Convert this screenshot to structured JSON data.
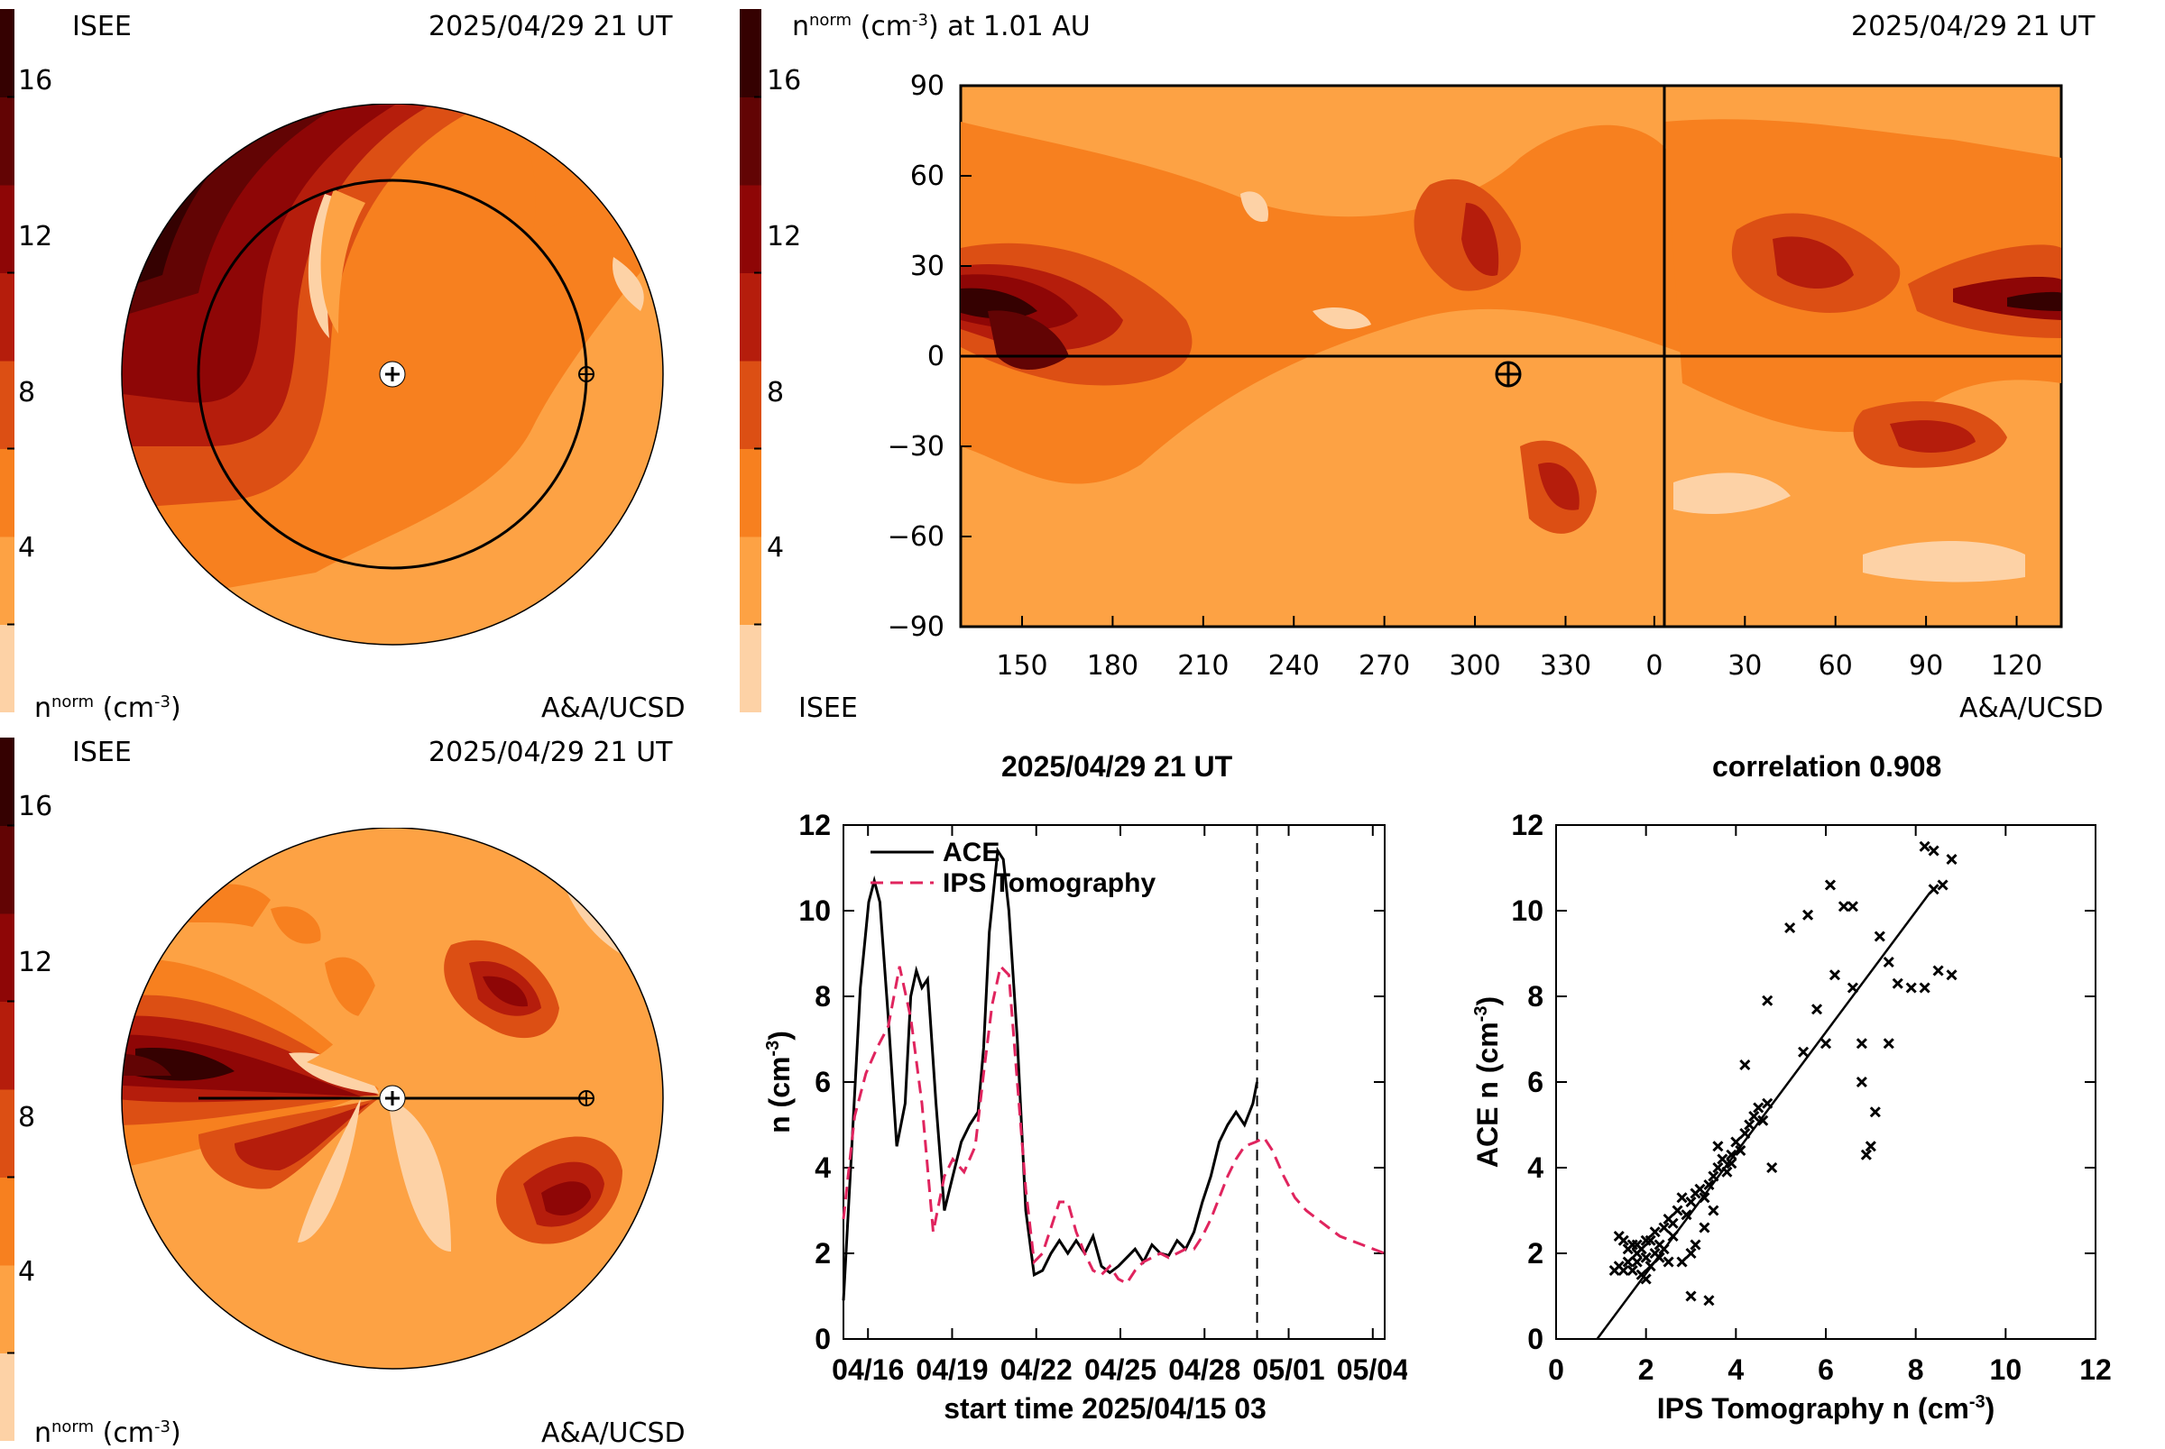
{
  "colors": {
    "levels": [
      "#fdd2a6",
      "#fda244",
      "#f7801f",
      "#dc4f14",
      "#b51d0c",
      "#8e0606",
      "#620404",
      "#350101"
    ],
    "ace_line": "#000000",
    "ips_line": "#e0245e"
  },
  "panel_tl": {
    "left_label": "ISEE",
    "date": "2025/04/29 21 UT",
    "bottom_left": "n",
    "bottom_left_sup": "norm",
    "bottom_left_unit": "(cm",
    "bottom_left_unit_sup": "-3",
    "bottom_left_unit_end": ")",
    "credit": "A&A/UCSD"
  },
  "colorbar_ticks": [
    "16",
    "12",
    "8",
    "4"
  ],
  "panel_tr": {
    "title": "n",
    "title_sup": "norm",
    "title_unit": "(cm",
    "title_unit_sup": "-3",
    "title_rest": ") at 1.01 AU",
    "date": "2025/04/29 21 UT",
    "y_ticks": [
      "90",
      "60",
      "30",
      "0",
      "−30",
      "−60",
      "−90"
    ],
    "x_ticks": [
      "150",
      "180",
      "210",
      "240",
      "270",
      "300",
      "330",
      "0",
      "30",
      "60",
      "90",
      "120"
    ],
    "bottom_left": "ISEE",
    "credit": "A&A/UCSD"
  },
  "panel_bl": {
    "left_label": "ISEE",
    "date": "2025/04/29 21 UT",
    "bottom_left": "n",
    "bottom_left_sup": "norm",
    "bottom_left_unit": "(cm",
    "bottom_left_unit_sup": "-3",
    "bottom_left_unit_end": ")",
    "credit": "A&A/UCSD"
  },
  "chart_data": [
    {
      "type": "line",
      "title": "2025/04/29 21 UT",
      "xlabel": "start time 2025/04/15 03",
      "ylabel": "n (cm",
      "ylabel_sup": "-3",
      "ylabel_end": ")",
      "x_tick_labels": [
        "04/16",
        "04/19",
        "04/22",
        "04/25",
        "04/28",
        "05/01",
        "05/04"
      ],
      "x_tick_days": [
        0.875,
        3.875,
        6.875,
        9.875,
        12.875,
        15.875,
        18.875
      ],
      "xlim_days": [
        0,
        19.3
      ],
      "ylim": [
        0,
        12
      ],
      "y_ticks": [
        "0",
        "2",
        "4",
        "6",
        "8",
        "10",
        "12"
      ],
      "current_time_day": 14.75,
      "series": [
        {
          "name": "ACE",
          "style": "solid",
          "x": [
            0,
            0.3,
            0.6,
            0.9,
            1.1,
            1.3,
            1.6,
            1.9,
            2.2,
            2.4,
            2.6,
            2.8,
            3.0,
            3.3,
            3.6,
            3.9,
            4.2,
            4.5,
            4.8,
            5.0,
            5.2,
            5.5,
            5.7,
            5.9,
            6.2,
            6.5,
            6.8,
            7.1,
            7.4,
            7.7,
            8.0,
            8.3,
            8.6,
            8.9,
            9.2,
            9.5,
            9.8,
            10.1,
            10.4,
            10.7,
            11.0,
            11.3,
            11.6,
            11.9,
            12.2,
            12.5,
            12.8,
            13.1,
            13.4,
            13.7,
            14.0,
            14.3,
            14.6,
            14.75
          ],
          "y": [
            0.9,
            4.5,
            8.2,
            10.2,
            10.7,
            10.2,
            7.5,
            4.5,
            5.5,
            8.0,
            8.6,
            8.2,
            8.4,
            5.5,
            3.0,
            3.8,
            4.6,
            5.0,
            5.3,
            6.8,
            9.5,
            11.4,
            11.2,
            10.0,
            7.0,
            3.0,
            1.5,
            1.6,
            2.0,
            2.3,
            2.0,
            2.3,
            2.0,
            2.4,
            1.7,
            1.55,
            1.7,
            1.9,
            2.1,
            1.8,
            2.2,
            2.0,
            1.95,
            2.3,
            2.1,
            2.5,
            3.2,
            3.8,
            4.6,
            5.0,
            5.3,
            5.0,
            5.5,
            6.0
          ]
        },
        {
          "name": "IPS Tomography",
          "style": "dashed",
          "x": [
            0,
            0.4,
            0.8,
            1.2,
            1.6,
            2.0,
            2.4,
            2.8,
            3.2,
            3.6,
            3.9,
            4.3,
            4.7,
            5.0,
            5.3,
            5.6,
            5.9,
            6.2,
            6.5,
            6.8,
            7.1,
            7.4,
            7.7,
            8.0,
            8.3,
            8.6,
            8.9,
            9.2,
            9.5,
            9.8,
            10.1,
            10.4,
            10.7,
            11.0,
            11.3,
            11.6,
            11.9,
            12.2,
            12.5,
            12.8,
            13.1,
            13.4,
            13.7,
            14.0,
            14.3,
            14.7,
            15.0,
            15.3,
            15.7,
            16.1,
            16.5,
            16.9,
            17.3,
            17.7,
            18.1,
            18.5,
            18.9,
            19.3
          ],
          "y": [
            2.8,
            5.2,
            6.2,
            6.8,
            7.3,
            8.7,
            7.5,
            5.5,
            2.5,
            3.8,
            4.2,
            3.9,
            4.5,
            6.2,
            7.8,
            8.7,
            8.5,
            6.0,
            3.5,
            1.8,
            2.0,
            2.6,
            3.2,
            3.2,
            2.5,
            2.0,
            1.6,
            1.5,
            1.7,
            1.4,
            1.3,
            1.6,
            1.8,
            1.9,
            2.0,
            1.9,
            2.0,
            2.1,
            2.1,
            2.4,
            2.8,
            3.3,
            3.8,
            4.2,
            4.5,
            4.6,
            4.7,
            4.4,
            3.8,
            3.3,
            3.0,
            2.8,
            2.6,
            2.4,
            2.3,
            2.2,
            2.1,
            2.0
          ]
        }
      ]
    },
    {
      "type": "scatter",
      "title": "correlation 0.908",
      "xlabel": "IPS Tomography n (cm",
      "xlabel_sup": "-3",
      "xlabel_end": ")",
      "ylabel": "ACE n (cm",
      "ylabel_sup": "-3",
      "ylabel_end": ")",
      "xlim": [
        0,
        12
      ],
      "ylim": [
        0,
        12
      ],
      "ticks": [
        "0",
        "2",
        "4",
        "6",
        "8",
        "10",
        "12"
      ],
      "fit_line": {
        "x": [
          0.7,
          8.3
        ],
        "y": [
          -0.3,
          10.4
        ]
      },
      "points": [
        [
          1.3,
          1.6
        ],
        [
          1.4,
          1.7
        ],
        [
          1.5,
          1.6
        ],
        [
          1.6,
          1.8
        ],
        [
          1.6,
          2.1
        ],
        [
          1.7,
          1.6
        ],
        [
          1.8,
          2.0
        ],
        [
          1.8,
          2.2
        ],
        [
          1.9,
          1.5
        ],
        [
          2.0,
          1.9
        ],
        [
          2.0,
          2.3
        ],
        [
          2.1,
          1.7
        ],
        [
          2.2,
          2.0
        ],
        [
          2.2,
          2.5
        ],
        [
          2.3,
          2.2
        ],
        [
          2.4,
          2.6
        ],
        [
          2.5,
          1.8
        ],
        [
          2.5,
          2.8
        ],
        [
          2.6,
          2.4
        ],
        [
          2.7,
          3.0
        ],
        [
          2.8,
          1.8
        ],
        [
          2.9,
          2.9
        ],
        [
          3.0,
          3.2
        ],
        [
          3.0,
          2.0
        ],
        [
          3.1,
          2.2
        ],
        [
          3.2,
          3.5
        ],
        [
          3.3,
          3.3
        ],
        [
          3.4,
          3.6
        ],
        [
          3.5,
          3.8
        ],
        [
          3.6,
          4.0
        ],
        [
          3.7,
          4.2
        ],
        [
          3.8,
          3.9
        ],
        [
          3.9,
          4.3
        ],
        [
          4.0,
          4.6
        ],
        [
          4.1,
          4.4
        ],
        [
          4.2,
          4.8
        ],
        [
          4.3,
          5.0
        ],
        [
          4.4,
          5.2
        ],
        [
          4.5,
          5.4
        ],
        [
          4.6,
          5.1
        ],
        [
          4.7,
          5.5
        ],
        [
          1.4,
          2.4
        ],
        [
          1.5,
          2.3
        ],
        [
          1.7,
          2.2
        ],
        [
          1.9,
          2.1
        ],
        [
          2.1,
          2.3
        ],
        [
          2.3,
          1.9
        ],
        [
          2.6,
          2.7
        ],
        [
          2.8,
          3.3
        ],
        [
          3.1,
          3.4
        ],
        [
          3.3,
          2.6
        ],
        [
          3.5,
          3.0
        ],
        [
          3.6,
          4.5
        ],
        [
          3.9,
          4.1
        ],
        [
          4.2,
          6.4
        ],
        [
          4.8,
          4.0
        ],
        [
          4.7,
          7.9
        ],
        [
          5.2,
          9.6
        ],
        [
          5.5,
          6.7
        ],
        [
          5.6,
          9.9
        ],
        [
          5.8,
          7.7
        ],
        [
          6.0,
          6.9
        ],
        [
          6.1,
          10.6
        ],
        [
          6.2,
          8.5
        ],
        [
          6.4,
          10.1
        ],
        [
          6.6,
          10.1
        ],
        [
          6.6,
          8.2
        ],
        [
          6.8,
          6.9
        ],
        [
          6.8,
          6.0
        ],
        [
          6.9,
          4.3
        ],
        [
          7.0,
          4.5
        ],
        [
          7.1,
          5.3
        ],
        [
          7.2,
          9.4
        ],
        [
          7.4,
          6.9
        ],
        [
          7.4,
          8.8
        ],
        [
          7.6,
          8.3
        ],
        [
          7.9,
          8.2
        ],
        [
          8.2,
          8.2
        ],
        [
          8.2,
          11.5
        ],
        [
          8.4,
          11.4
        ],
        [
          8.4,
          10.5
        ],
        [
          8.5,
          8.6
        ],
        [
          8.6,
          10.6
        ],
        [
          8.8,
          11.2
        ],
        [
          8.8,
          8.5
        ],
        [
          3.0,
          1.0
        ],
        [
          3.4,
          0.9
        ],
        [
          2.0,
          1.4
        ],
        [
          2.4,
          2.1
        ],
        [
          1.8,
          1.8
        ]
      ]
    }
  ]
}
